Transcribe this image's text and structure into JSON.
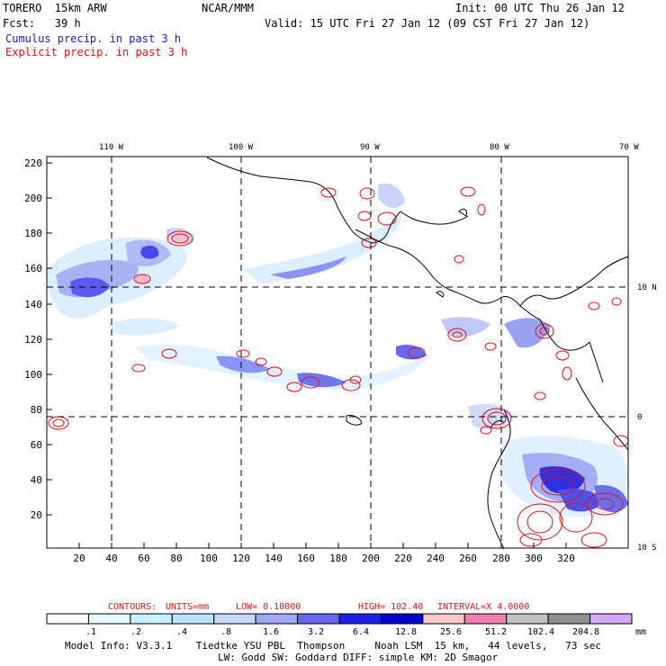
{
  "header": {
    "model": "TORERO  15km ARW",
    "org": "NCAR/MMM",
    "init": "Init: 00 UTC Thu 26 Jan 12",
    "fcst": "Fcst:   39 h",
    "valid": "Valid: 15 UTC Fri 27 Jan 12 (09 CST Fri 27 Jan 12)",
    "field1": "Cumulus precip. in past 3 h",
    "field2": "Explicit precip. in past 3 h"
  },
  "colors": {
    "cumulus_text": "#1a1acd",
    "explicit_text": "#e01010",
    "contour": "#e01010"
  },
  "map": {
    "top_lon_labels": [
      "110 W",
      "100 W",
      "90 W",
      "80 W",
      "70 W"
    ],
    "right_lat_labels": [
      "10 N",
      "0",
      "10 S"
    ],
    "y_grid_labels": [
      "220",
      "200",
      "180",
      "160",
      "140",
      "120",
      "100",
      "80",
      "60",
      "40",
      "20"
    ],
    "x_grid_labels": [
      "20",
      "40",
      "60",
      "80",
      "100",
      "120",
      "140",
      "160",
      "180",
      "200",
      "220",
      "240",
      "260",
      "280",
      "300",
      "320"
    ]
  },
  "contour_info": {
    "prefix": "CONTOURS:",
    "units": "UNITS=mm",
    "low": "LOW= 0.10000",
    "high": "HIGH=  102.40",
    "interval": "INTERVAL=X  4.0000"
  },
  "colorbar": {
    "labels": [
      ".1",
      ".2",
      ".4",
      ".8",
      "1.6",
      "3.2",
      "6.4",
      "12.8",
      "25.6",
      "51.2",
      "102.4",
      "204.8"
    ],
    "units": "mm",
    "colors": [
      "#ffffff",
      "#e8f8ff",
      "#c8f0ff",
      "#b8e4f8",
      "#c8d8f8",
      "#a0a8f4",
      "#6868f0",
      "#2020ea",
      "#0000cc",
      "#f8c8c8",
      "#f080b0",
      "#c0c0c0",
      "#909090",
      "#d8a8f8"
    ]
  },
  "footer": {
    "line1": "Model Info: V3.3.1    Tiedtke YSU PBL  Thompson     Noah LSM  15 km,   44 levels,   73 sec",
    "line2": "LW: Godd SW: Goddard DIFF: simple KM: 2D Smagor"
  }
}
